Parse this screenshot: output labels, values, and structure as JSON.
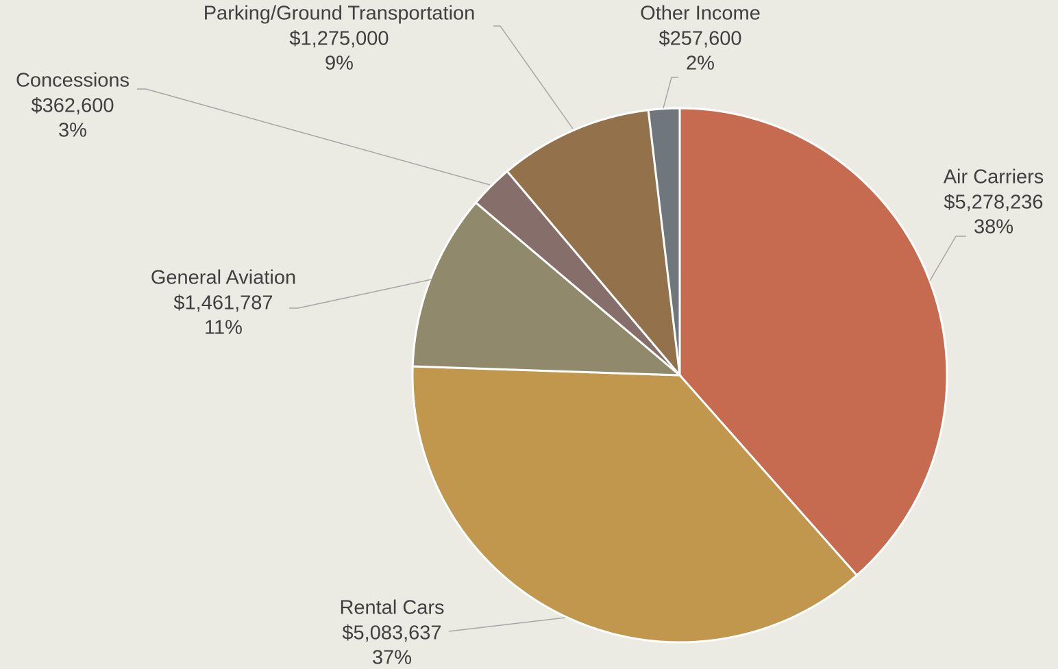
{
  "chart_data": {
    "type": "pie",
    "categories": [
      "Air Carriers",
      "Rental Cars",
      "General Aviation",
      "Concessions",
      "Parking/Ground Transportation",
      "Other Income"
    ],
    "values": [
      5278236,
      5083637,
      1461787,
      362600,
      1275000,
      257600
    ],
    "value_labels": [
      "$5,278,236",
      "$5,083,637",
      "$1,461,787",
      "$362,600",
      "$1,275,000",
      "$257,600"
    ],
    "percent_labels": [
      "38%",
      "37%",
      "11%",
      "3%",
      "9%",
      "2%"
    ],
    "colors": [
      "#c66a50",
      "#c0974c",
      "#91896c",
      "#866e6a",
      "#93724b",
      "#6f777d"
    ]
  }
}
